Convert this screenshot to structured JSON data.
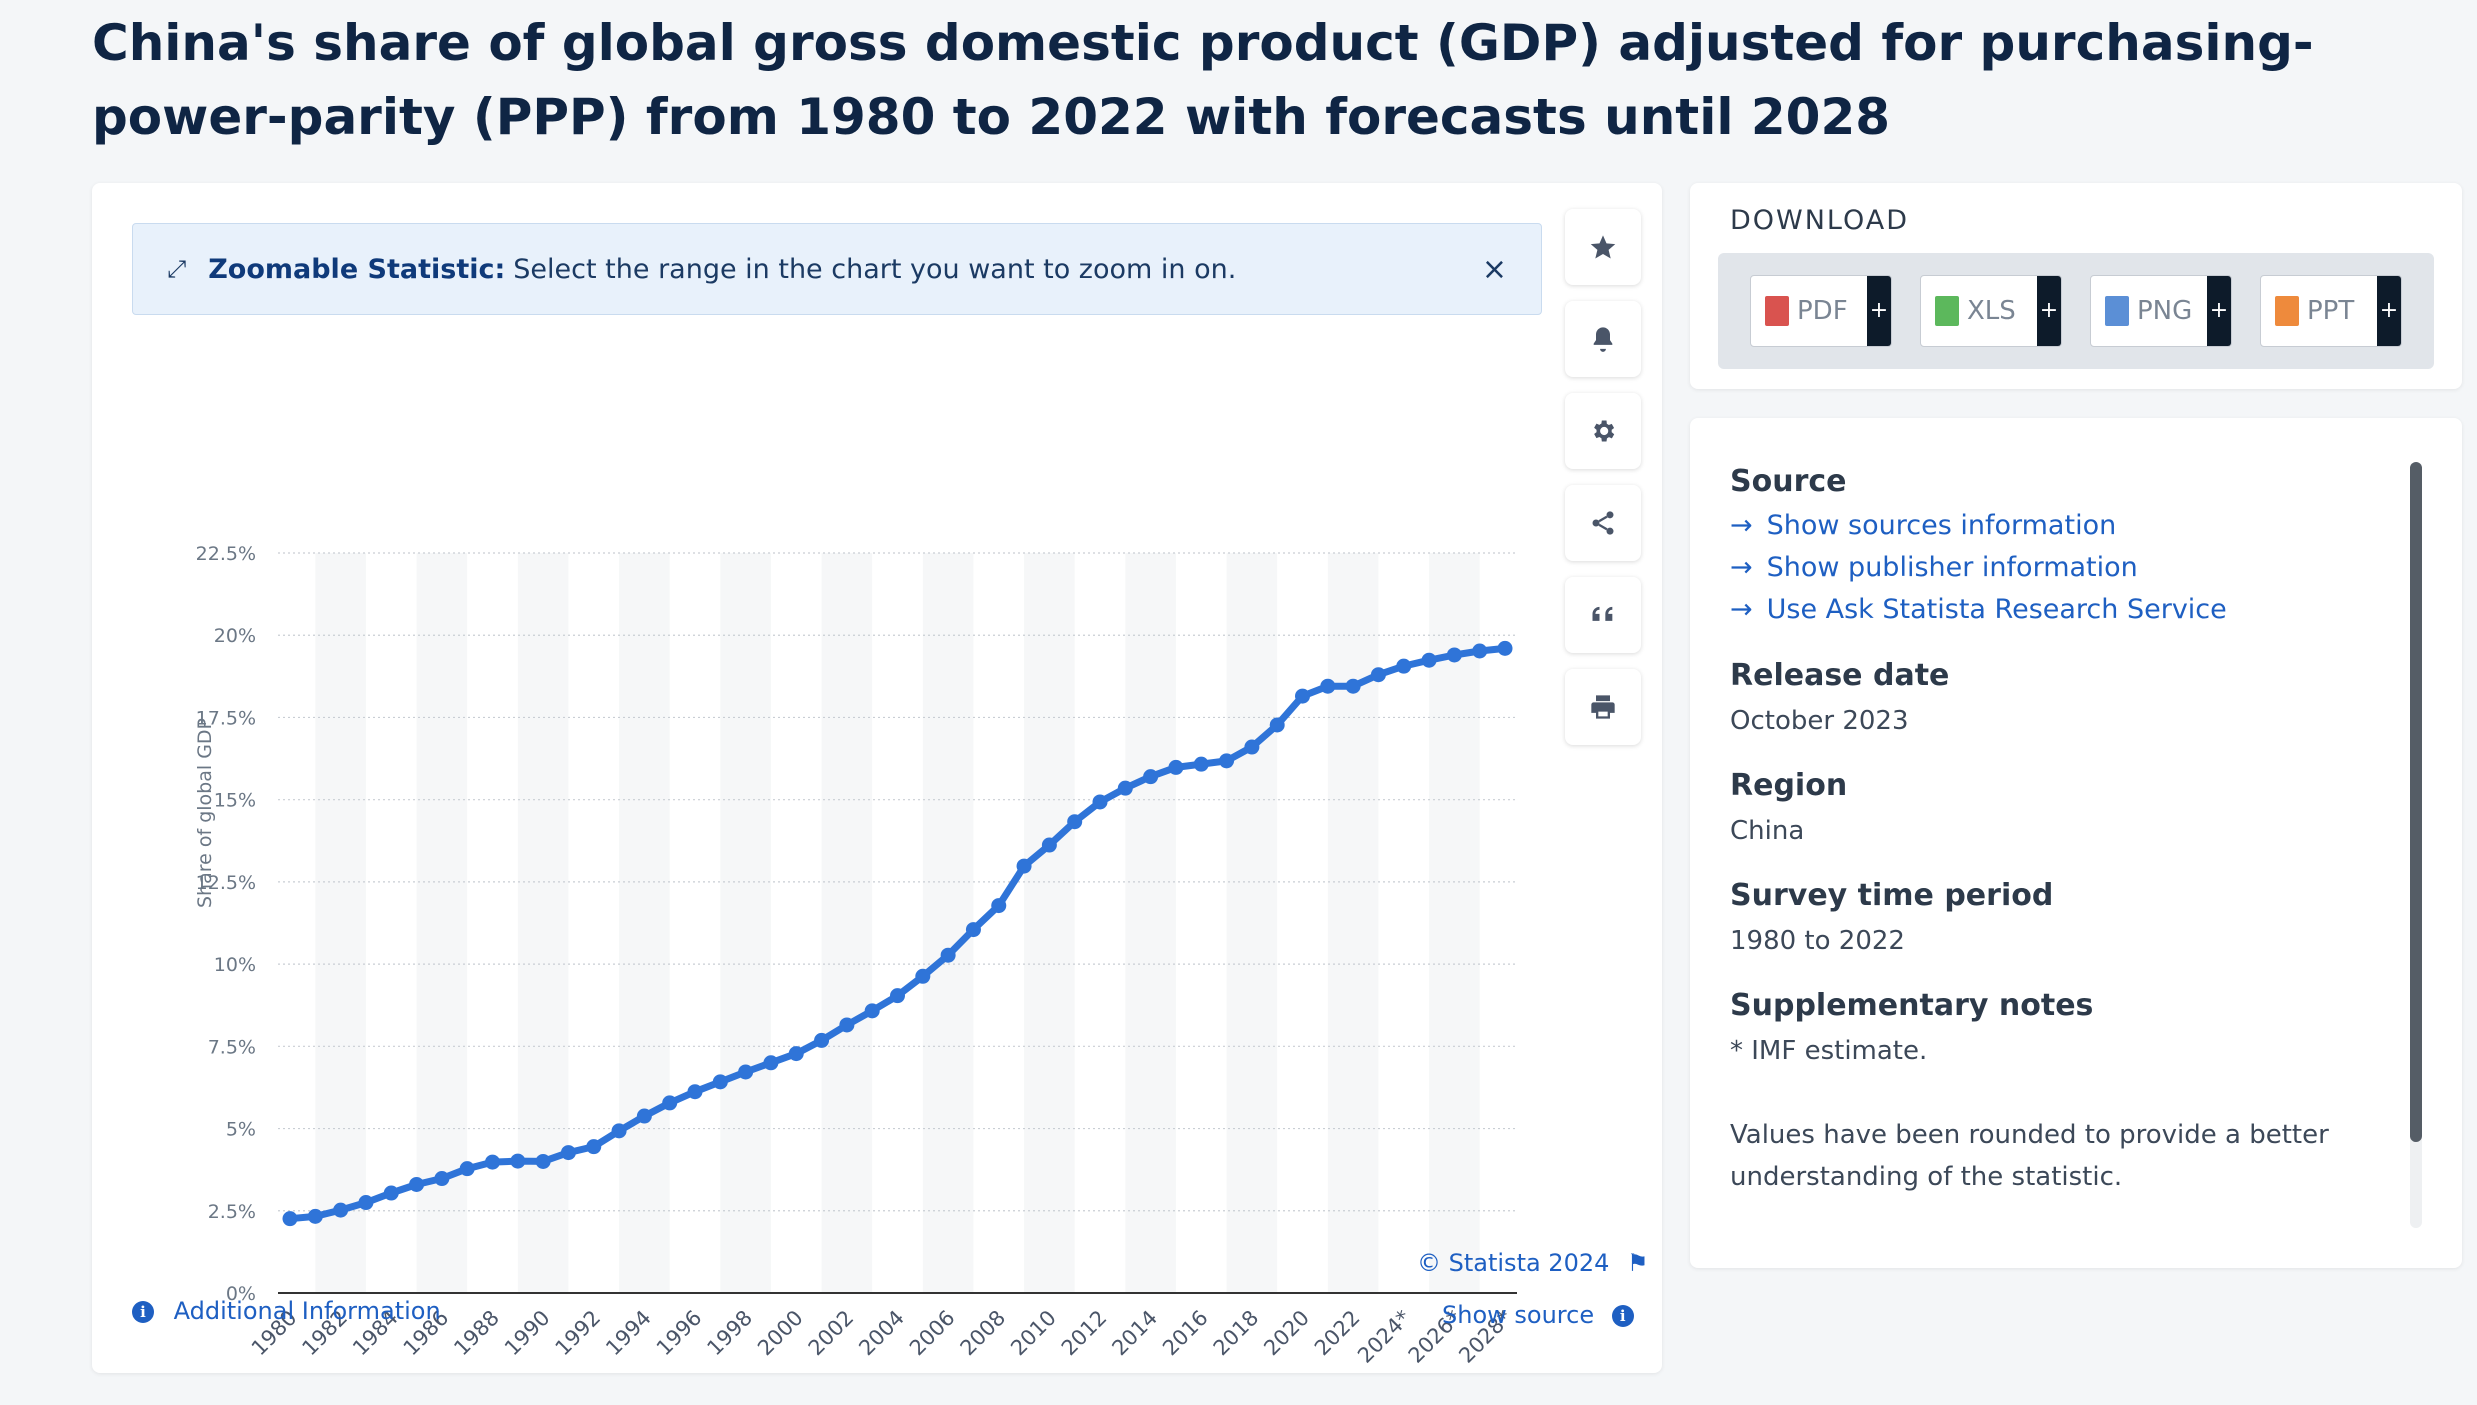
{
  "title": "China's share of global gross domestic product (GDP) adjusted for purchasing-power-parity (PPP) from 1980 to 2022 with forecasts until 2028",
  "zoom_banner": {
    "label": "Zoomable Statistic:",
    "text": "Select the range in the chart you want to zoom in on.",
    "close": "×"
  },
  "toolbar": [
    "star-icon",
    "bell-icon",
    "gear-icon",
    "share-icon",
    "quote-icon",
    "print-icon"
  ],
  "chart_data": {
    "type": "line",
    "ylabel": "Share of global GDP",
    "xlabel": "",
    "ylim": [
      0,
      22.5
    ],
    "y_ticks": [
      "0%",
      "2.5%",
      "5%",
      "7.5%",
      "10%",
      "12.5%",
      "15%",
      "17.5%",
      "20%",
      "22.5%"
    ],
    "x_tick_labels": [
      "1980",
      "1982",
      "1984",
      "1986",
      "1988",
      "1990",
      "1992",
      "1994",
      "1996",
      "1998",
      "2000",
      "2002",
      "2004",
      "2006",
      "2008",
      "2010",
      "2012",
      "2014",
      "2016",
      "2018",
      "2020",
      "2022",
      "2024*",
      "2026*",
      "2028*"
    ],
    "x": [
      1980,
      1981,
      1982,
      1983,
      1984,
      1985,
      1986,
      1987,
      1988,
      1989,
      1990,
      1991,
      1992,
      1993,
      1994,
      1995,
      1996,
      1997,
      1998,
      1999,
      2000,
      2001,
      2002,
      2003,
      2004,
      2005,
      2006,
      2007,
      2008,
      2009,
      2010,
      2011,
      2012,
      2013,
      2014,
      2015,
      2016,
      2017,
      2018,
      2019,
      2020,
      2021,
      2022,
      2023,
      2024,
      2025,
      2026,
      2027,
      2028
    ],
    "series": [
      {
        "color": "#2f74d8",
        "values": [
          2.26,
          2.33,
          2.52,
          2.75,
          3.04,
          3.3,
          3.48,
          3.78,
          3.98,
          4.01,
          4.0,
          4.27,
          4.45,
          4.93,
          5.38,
          5.78,
          6.12,
          6.42,
          6.72,
          7.0,
          7.28,
          7.68,
          8.15,
          8.58,
          9.04,
          9.63,
          10.27,
          11.05,
          11.78,
          12.98,
          13.62,
          14.33,
          14.93,
          15.35,
          15.7,
          15.98,
          16.08,
          16.18,
          16.6,
          17.27,
          18.15,
          18.45,
          18.45,
          18.8,
          19.06,
          19.24,
          19.4,
          19.52,
          19.6
        ]
      }
    ],
    "grid": true
  },
  "footer": {
    "copyright": "© Statista 2024",
    "show_source": "Show source",
    "additional_info": "Additional Information"
  },
  "download": {
    "title": "DOWNLOAD",
    "buttons": [
      {
        "label": "PDF",
        "color": "#d9534f"
      },
      {
        "label": "XLS",
        "color": "#5cb85c"
      },
      {
        "label": "PNG",
        "color": "#5b8fd6"
      },
      {
        "label": "PPT",
        "color": "#ee8a3c"
      }
    ],
    "plus": "+"
  },
  "meta": {
    "source_heading": "Source",
    "links": [
      "Show sources information",
      "Show publisher information",
      "Use Ask Statista Research Service"
    ],
    "release_heading": "Release date",
    "release_value": "October 2023",
    "region_heading": "Region",
    "region_value": "China",
    "period_heading": "Survey time period",
    "period_value": "1980 to 2022",
    "notes_heading": "Supplementary notes",
    "notes_value": "* IMF estimate.",
    "notes_extra_1": "Values have been rounded to provide a better",
    "notes_extra_2": "understanding of the statistic."
  }
}
